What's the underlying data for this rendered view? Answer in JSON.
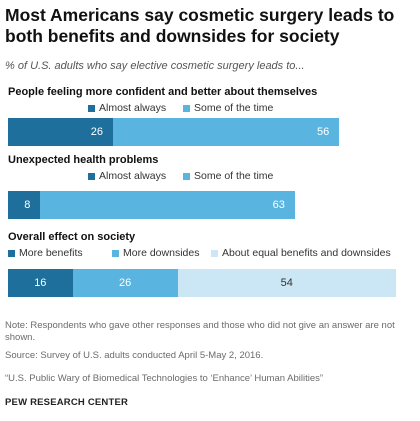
{
  "title": "Most Americans say cosmetic surgery leads to both benefits and downsides for society",
  "subtitle": "% of U.S. adults who say elective cosmetic surgery leads to...",
  "colors": {
    "dark": "#1f6f9c",
    "medium": "#5ab4e0",
    "light": "#cbe6f4"
  },
  "chart_data": [
    {
      "type": "bar",
      "title": "People feeling more confident and better about themselves",
      "series": [
        {
          "name": "Almost always",
          "values": [
            26
          ]
        },
        {
          "name": "Some of the time",
          "values": [
            56
          ]
        }
      ]
    },
    {
      "type": "bar",
      "title": "Unexpected health problems",
      "series": [
        {
          "name": "Almost always",
          "values": [
            8
          ]
        },
        {
          "name": "Some of the time",
          "values": [
            63
          ]
        }
      ]
    },
    {
      "type": "bar",
      "title": "Overall effect on society",
      "series": [
        {
          "name": "More benefits",
          "values": [
            16
          ]
        },
        {
          "name": "More downsides",
          "values": [
            26
          ]
        },
        {
          "name": "About equal benefits and downsides",
          "values": [
            54
          ]
        }
      ]
    }
  ],
  "notes": {
    "note": "Note: Respondents who gave other responses and those who did not give an answer are not shown.",
    "source": "Source: Survey of U.S. adults conducted April 5-May 2, 2016.",
    "report": "“U.S. Public Wary of Biomedical Technologies to ‘Enhance’ Human Abilities”",
    "org": "PEW RESEARCH CENTER"
  }
}
